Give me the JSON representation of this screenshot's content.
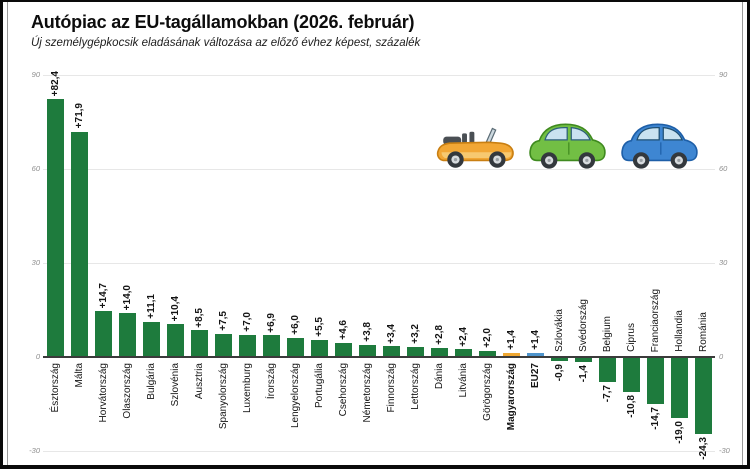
{
  "header": {
    "title": "Autópiac az EU-tagállamokban (2026. február)",
    "subtitle": "Új személygépkocsik eladásának változása az előző évhez képest, százalék"
  },
  "colors": {
    "green": "#1e7b3d",
    "orange": "#f0a832",
    "blue": "#4e94cc",
    "zero_line": "#3b3b3b",
    "gridline": "#e7e7e7",
    "tick_text": "#8e8e8e"
  },
  "chart_data": {
    "type": "bar",
    "title": "Autópiac az EU-tagállamokban (2026. február)",
    "subtitle": "Új személygépkocsik eladásának változása az előző évhez képest, százalék",
    "ylabel": "százalék",
    "ylim": [
      -30,
      90
    ],
    "grid": true,
    "yticks": [
      {
        "value": 90,
        "label": "90"
      },
      {
        "value": 60,
        "label": "60"
      },
      {
        "value": 30,
        "label": "30"
      },
      {
        "value": 0,
        "label": "0"
      },
      {
        "value": -30,
        "label": "-30"
      }
    ],
    "bars": [
      {
        "name": "Észtország",
        "value": 82.4,
        "label": "+82,4",
        "color": "green",
        "bold": false
      },
      {
        "name": "Málta",
        "value": 71.9,
        "label": "+71,9",
        "color": "green",
        "bold": false
      },
      {
        "name": "Horvátország",
        "value": 14.7,
        "label": "+14,7",
        "color": "green",
        "bold": false
      },
      {
        "name": "Olaszország",
        "value": 14.0,
        "label": "+14,0",
        "color": "green",
        "bold": false
      },
      {
        "name": "Bulgária",
        "value": 11.1,
        "label": "+11,1",
        "color": "green",
        "bold": false
      },
      {
        "name": "Szlovénia",
        "value": 10.4,
        "label": "+10,4",
        "color": "green",
        "bold": false
      },
      {
        "name": "Ausztria",
        "value": 8.5,
        "label": "+8,5",
        "color": "green",
        "bold": false
      },
      {
        "name": "Spanyolország",
        "value": 7.5,
        "label": "+7,5",
        "color": "green",
        "bold": false
      },
      {
        "name": "Luxemburg",
        "value": 7.0,
        "label": "+7,0",
        "color": "green",
        "bold": false
      },
      {
        "name": "Írország",
        "value": 6.9,
        "label": "+6,9",
        "color": "green",
        "bold": false
      },
      {
        "name": "Lengyelország",
        "value": 6.0,
        "label": "+6,0",
        "color": "green",
        "bold": false
      },
      {
        "name": "Portugália",
        "value": 5.5,
        "label": "+5,5",
        "color": "green",
        "bold": false
      },
      {
        "name": "Csehország",
        "value": 4.6,
        "label": "+4,6",
        "color": "green",
        "bold": false
      },
      {
        "name": "Németország",
        "value": 3.8,
        "label": "+3,8",
        "color": "green",
        "bold": false
      },
      {
        "name": "Finnország",
        "value": 3.4,
        "label": "+3,4",
        "color": "green",
        "bold": false
      },
      {
        "name": "Lettország",
        "value": 3.2,
        "label": "+3,2",
        "color": "green",
        "bold": false
      },
      {
        "name": "Dánia",
        "value": 2.8,
        "label": "+2,8",
        "color": "green",
        "bold": false
      },
      {
        "name": "Litvánia",
        "value": 2.4,
        "label": "+2,4",
        "color": "green",
        "bold": false
      },
      {
        "name": "Görögország",
        "value": 2.0,
        "label": "+2,0",
        "color": "green",
        "bold": false
      },
      {
        "name": "Magyarország",
        "value": 1.4,
        "label": "+1,4",
        "color": "orange",
        "bold": true
      },
      {
        "name": "EU27",
        "value": 1.4,
        "label": "+1,4",
        "color": "blue",
        "bold": true
      },
      {
        "name": "Szlovákia",
        "value": -0.9,
        "label": "-0,9",
        "color": "green",
        "bold": false
      },
      {
        "name": "Svédország",
        "value": -1.4,
        "label": "-1,4",
        "color": "green",
        "bold": false
      },
      {
        "name": "Belgium",
        "value": -7.7,
        "label": "-7,7",
        "color": "green",
        "bold": false
      },
      {
        "name": "Ciprus",
        "value": -10.8,
        "label": "-10,8",
        "color": "green",
        "bold": false
      },
      {
        "name": "Franciaország",
        "value": -14.7,
        "label": "-14,7",
        "color": "green",
        "bold": false
      },
      {
        "name": "Hollandia",
        "value": -19.0,
        "label": "-19,0",
        "color": "green",
        "bold": false
      },
      {
        "name": "Románia",
        "value": -24.3,
        "label": "-24,3",
        "color": "green",
        "bold": false
      }
    ]
  },
  "decorations": {
    "cars": [
      "convertible-car-orange",
      "hatchback-car-green",
      "hatchback-car-blue"
    ]
  }
}
